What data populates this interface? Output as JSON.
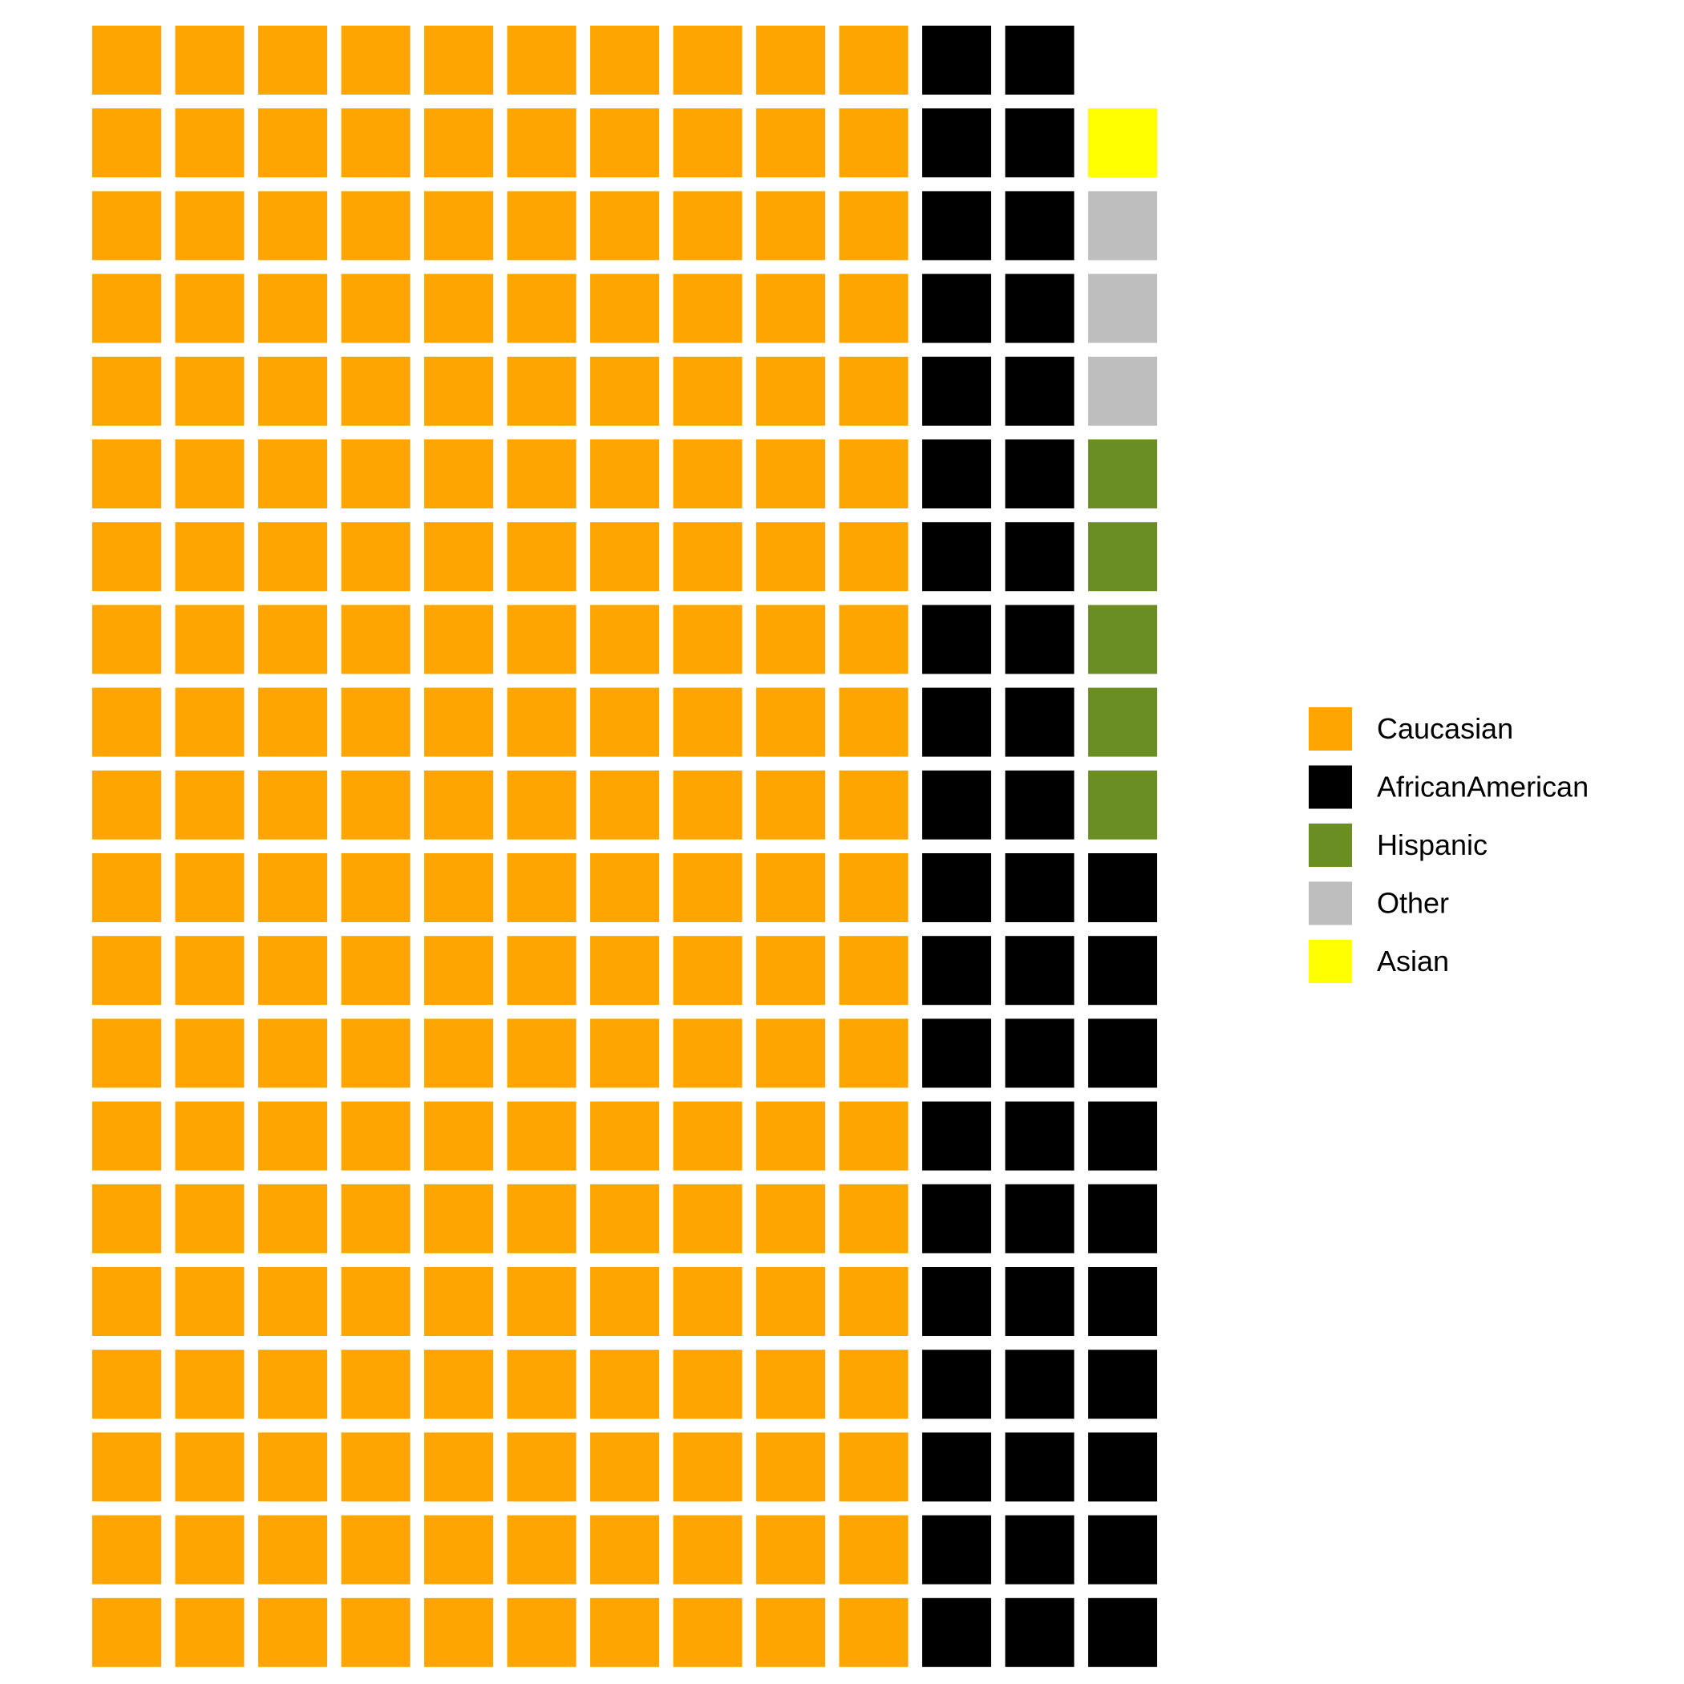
{
  "chart_data": {
    "type": "waffle",
    "title": "",
    "xlabel": "",
    "ylabel": "",
    "grid": false,
    "legend_position": "right",
    "fill_order": "column-wise, bottom-to-top, left-to-right",
    "columns": 13,
    "rows": 20,
    "series": [
      {
        "name": "Caucasian",
        "value": 200,
        "color": "#FFA500"
      },
      {
        "name": "AfricanAmerican",
        "value": 50,
        "color": "#000000"
      },
      {
        "name": "Hispanic",
        "value": 5,
        "color": "#6B8E23"
      },
      {
        "name": "Other",
        "value": 3,
        "color": "#BEBEBE"
      },
      {
        "name": "Asian",
        "value": 1,
        "color": "#FFFF00"
      }
    ]
  }
}
